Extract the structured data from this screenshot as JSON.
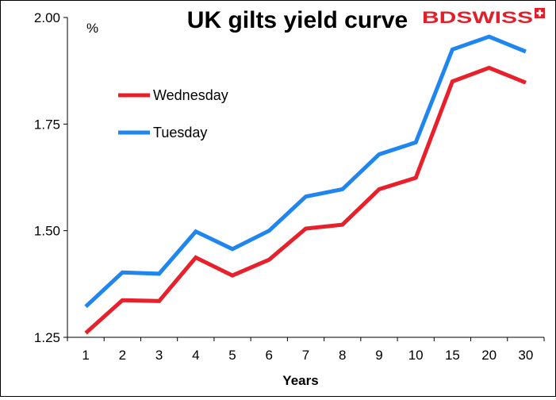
{
  "brand": {
    "logo_text": "BDSWISS",
    "color": "#e0202b"
  },
  "chart_data": {
    "type": "line",
    "title": "UK gilts yield curve",
    "xlabel": "Years",
    "ylabel": "%",
    "categories": [
      "1",
      "2",
      "3",
      "4",
      "5",
      "6",
      "7",
      "8",
      "9",
      "10",
      "15",
      "20",
      "30"
    ],
    "ylim": [
      1.25,
      2.0
    ],
    "yticks": [
      "1.25",
      "1.50",
      "1.75",
      "2.00"
    ],
    "grid": false,
    "legend_position": "upper-left",
    "series": [
      {
        "name": "Wednesday",
        "color": "#e8202b",
        "values": [
          1.26,
          1.337,
          1.335,
          1.437,
          1.395,
          1.432,
          1.505,
          1.514,
          1.597,
          1.624,
          1.85,
          1.882,
          1.847
        ]
      },
      {
        "name": "Tuesday",
        "color": "#1f86f0",
        "values": [
          1.322,
          1.402,
          1.399,
          1.498,
          1.457,
          1.5,
          1.58,
          1.597,
          1.679,
          1.707,
          1.925,
          1.955,
          1.92
        ]
      }
    ]
  }
}
